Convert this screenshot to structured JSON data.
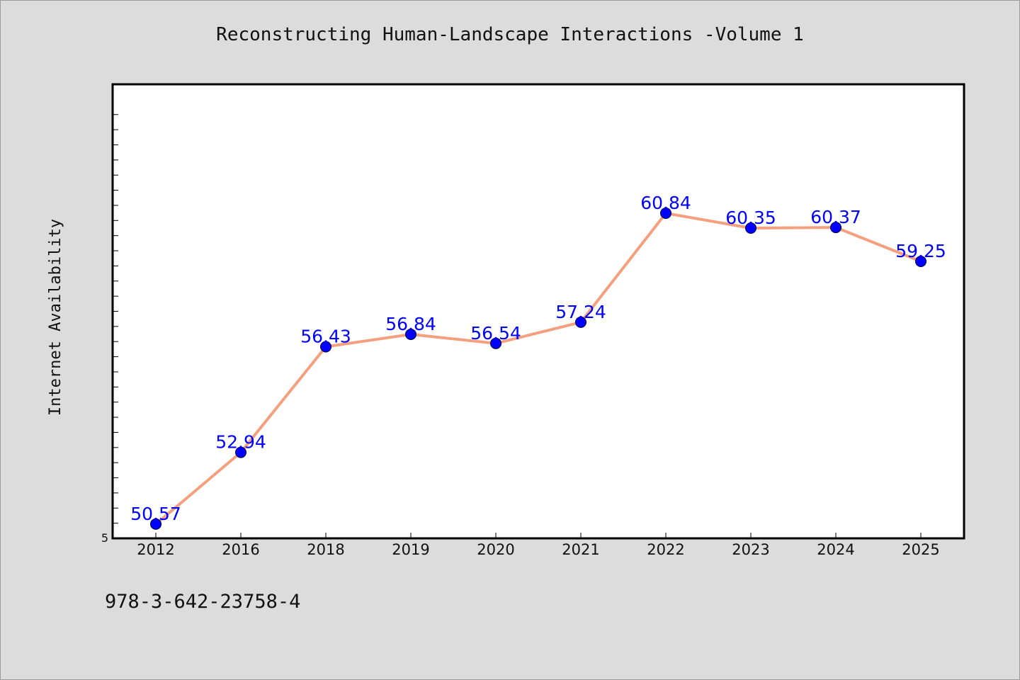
{
  "page": {
    "title": "Reconstructing Human-Landscape Interactions -Volume 1",
    "isbn": "978-3-642-23758-4"
  },
  "chart_data": {
    "type": "line",
    "title": "Reconstructing Human-Landscape Interactions -Volume 1",
    "xlabel": "",
    "ylabel": "Internet Availability",
    "categories": [
      "2012",
      "2016",
      "2018",
      "2019",
      "2020",
      "2021",
      "2022",
      "2023",
      "2024",
      "2025"
    ],
    "series": [
      {
        "values": [
          50.57,
          52.94,
          56.43,
          56.84,
          56.54,
          57.24,
          60.84,
          60.35,
          60.37,
          59.25
        ],
        "labels": [
          "50.57",
          "52.94",
          "56.43",
          "56.84",
          "56.54",
          "57.24",
          "60.84",
          "60.35",
          "60.37",
          "59.25"
        ]
      }
    ],
    "ylim": [
      50.1,
      65.1
    ],
    "y_tick_labels": [
      "5"
    ],
    "grid": false,
    "legend": "none",
    "colors": {
      "line": "#f4a07f",
      "marker": "#0000ff",
      "marker_edge": "#000033",
      "data_label": "#0000ff",
      "plot_background": "#ffffff",
      "page_background": "#dcdcdc"
    }
  }
}
